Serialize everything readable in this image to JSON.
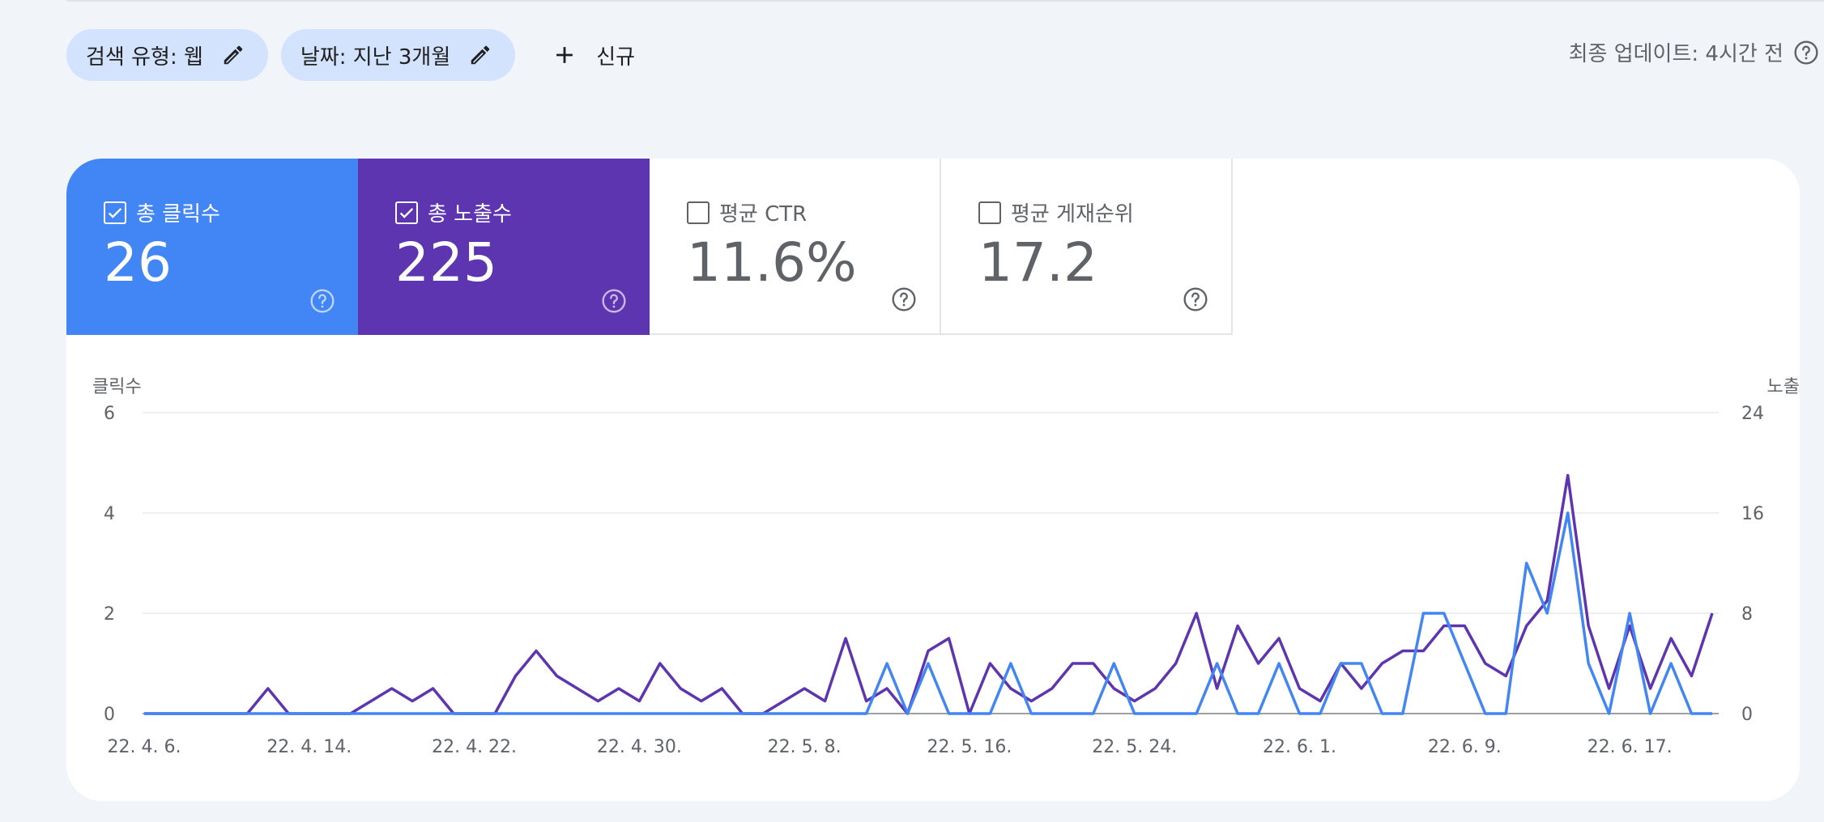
{
  "filters": {
    "search_type_label": "검색 유형: 웹",
    "date_label": "날짜: 지난 3개월",
    "new_label": "신규"
  },
  "last_updated": "최종 업데이트: 4시간 전",
  "metrics": [
    {
      "label": "총 클릭수",
      "value": "26",
      "checked": true,
      "color": "#4285f4"
    },
    {
      "label": "총 노출수",
      "value": "225",
      "checked": true,
      "color": "#5e35b1"
    },
    {
      "label": "평균 CTR",
      "value": "11.6%",
      "checked": false
    },
    {
      "label": "평균 게재순위",
      "value": "17.2",
      "checked": false
    }
  ],
  "chart_data": {
    "type": "line",
    "left_axis_title": "클릭수",
    "right_axis_title": "노출",
    "left_ticks": [
      "0",
      "2",
      "4",
      "6"
    ],
    "right_ticks": [
      "0",
      "8",
      "16",
      "24"
    ],
    "ylim_left": [
      0,
      6
    ],
    "ylim_right": [
      0,
      24
    ],
    "x_ticks": [
      {
        "label": "22. 4. 6.",
        "index": 0
      },
      {
        "label": "22. 4. 14.",
        "index": 8
      },
      {
        "label": "22. 4. 22.",
        "index": 16
      },
      {
        "label": "22. 4. 30.",
        "index": 24
      },
      {
        "label": "22. 5. 8.",
        "index": 32
      },
      {
        "label": "22. 5. 16.",
        "index": 40
      },
      {
        "label": "22. 5. 24.",
        "index": 48
      },
      {
        "label": "22. 6. 1.",
        "index": 56
      },
      {
        "label": "22. 6. 9.",
        "index": 64
      },
      {
        "label": "22. 6. 17.",
        "index": 72
      }
    ],
    "num_days": 77,
    "series": [
      {
        "name": "총 노출수",
        "axis": "right",
        "color": "#5e35b1",
        "values": [
          0,
          0,
          0,
          0,
          0,
          0,
          2,
          0,
          0,
          0,
          0,
          1,
          2,
          1,
          2,
          0,
          0,
          0,
          3,
          5,
          3,
          2,
          1,
          2,
          1,
          4,
          2,
          1,
          2,
          0,
          0,
          1,
          2,
          1,
          6,
          1,
          2,
          0,
          5,
          6,
          0,
          4,
          2,
          1,
          2,
          4,
          4,
          2,
          1,
          2,
          4,
          8,
          2,
          7,
          4,
          6,
          2,
          1,
          4,
          2,
          4,
          5,
          5,
          7,
          7,
          4,
          3,
          7,
          9,
          19,
          7,
          2,
          7,
          2,
          6,
          3,
          8
        ]
      },
      {
        "name": "총 클릭수",
        "axis": "left",
        "color": "#4285f4",
        "values": [
          0,
          0,
          0,
          0,
          0,
          0,
          0,
          0,
          0,
          0,
          0,
          0,
          0,
          0,
          0,
          0,
          0,
          0,
          0,
          0,
          0,
          0,
          0,
          0,
          0,
          0,
          0,
          0,
          0,
          0,
          0,
          0,
          0,
          0,
          0,
          0,
          1,
          0,
          1,
          0,
          0,
          0,
          1,
          0,
          0,
          0,
          0,
          1,
          0,
          0,
          0,
          0,
          1,
          0,
          0,
          1,
          0,
          0,
          1,
          1,
          0,
          0,
          2,
          2,
          1,
          0,
          0,
          3,
          2,
          4,
          1,
          0,
          2,
          0,
          1,
          0,
          0
        ]
      }
    ]
  }
}
